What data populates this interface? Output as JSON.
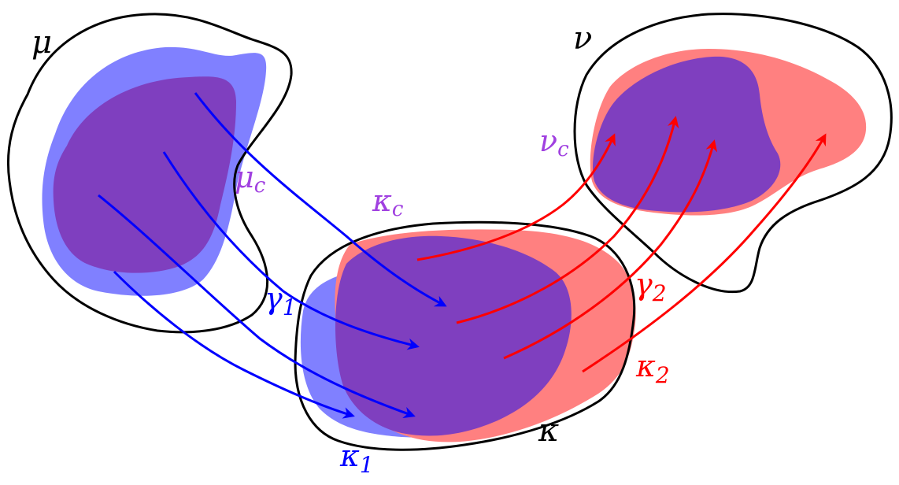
{
  "colors": {
    "blue_fill": "#8080ff",
    "red_fill": "#ff8080",
    "overlap_fill": "#7f3fbf",
    "blue_arrow": "#0000ff",
    "red_arrow": "#ff0000",
    "purple_label": "#a040e0",
    "outline": "#000000"
  },
  "labels": {
    "mu": "μ",
    "mu_c": "μ",
    "mu_c_sub": "c",
    "nu": "ν",
    "nu_c": "ν",
    "nu_c_sub": "c",
    "kappa": "κ",
    "kappa_c": "κ",
    "kappa_c_sub": "c",
    "kappa_1": "κ",
    "kappa_1_sub": "1",
    "kappa_2": "κ",
    "kappa_2_sub": "2",
    "gamma_1": "γ",
    "gamma_1_sub": "1",
    "gamma_2": "γ",
    "gamma_2_sub": "2"
  }
}
